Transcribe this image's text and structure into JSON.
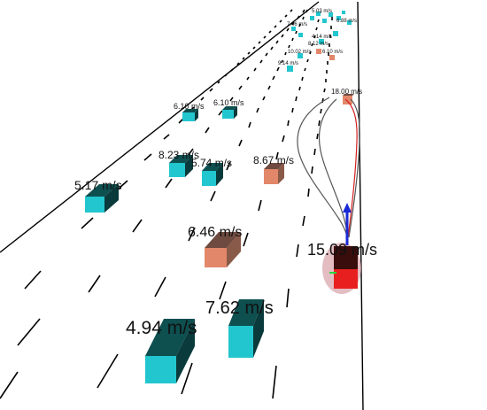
{
  "scene": {
    "colors": {
      "background": "#ffffff",
      "road_line": "#000000",
      "vehicle_cyan_front": "#22c6cf",
      "vehicle_cyan_top": "#0e4f50",
      "vehicle_cyan_side": "#0a3a3b",
      "vehicle_orange_front": "#e3876a",
      "vehicle_orange_top": "#6e4a40",
      "vehicle_orange_side": "#8a5a48",
      "ego_red": "#e81f1f",
      "ego_dark": "#3a0d0d",
      "ego_halo": "#d9a7ad",
      "trajectory_dark": "#555555",
      "trajectory_red": "#d32020",
      "heading_arrow": "#1a2bd6"
    },
    "ego": {
      "speed_label": "15.09 m/s",
      "icon": "ego-vehicle-icon"
    },
    "speed_labels": {
      "near_left": "4.94  m/s",
      "near_mid": "7.62  m/s",
      "mid_orange": "6.46  m/s",
      "left": "5.17  m/s",
      "center_a": "8.23  m/s",
      "center_b": "5.74  m/s",
      "right_orange": "8.67  m/s",
      "far_a": "6.10  m/s",
      "far_b": "6.10  m/s",
      "far_orange": "18.00  m/s",
      "distant_a": "9.14  m/s",
      "distant_b": "10.02  m/s",
      "distant_c": "6.10  m/s",
      "distant_d": "8.12  m/s",
      "distant_e": "4.14  m/s",
      "distant_f": "7.46  m/s",
      "distant_g": "5.03  m/s",
      "distant_h": "6.88  m/s"
    }
  }
}
